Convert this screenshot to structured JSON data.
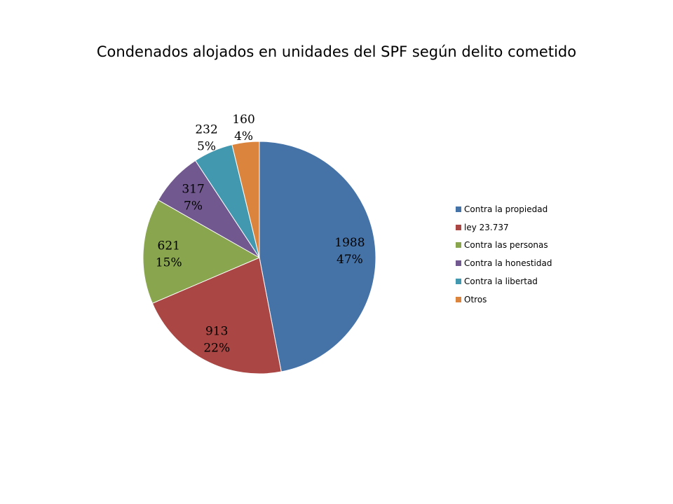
{
  "chart_data": {
    "type": "pie",
    "title": "Condenados alojados en unidades del SPF según delito cometido",
    "categories": [
      "Contra la propiedad",
      "ley 23.737",
      "Contra las personas",
      "Contra la honestidad",
      "Contra la libertad",
      "Otros"
    ],
    "values": [
      1988,
      913,
      621,
      317,
      232,
      160
    ],
    "percent_labels": [
      "47%",
      "22%",
      "15%",
      "7%",
      "5%",
      "4%"
    ],
    "colors": [
      "#4572A7",
      "#AA4643",
      "#89A54E",
      "#71588F",
      "#4198AF",
      "#DB843D"
    ],
    "legend_position": "right",
    "start_angle": "12 o'clock",
    "direction": "clockwise"
  }
}
